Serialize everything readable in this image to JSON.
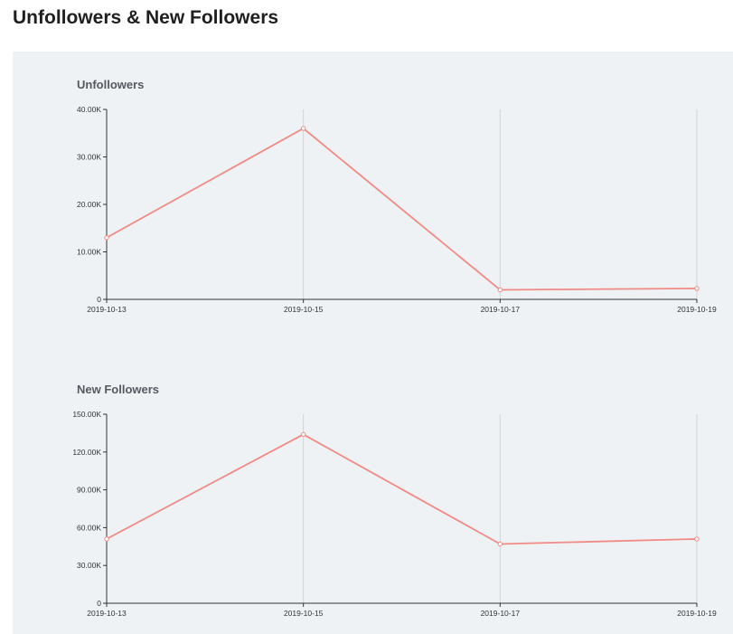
{
  "page": {
    "title": "Unfollowers & New Followers"
  },
  "colors": {
    "series": "#f08b84",
    "panel_bg": "#eff2f5"
  },
  "chart_data": [
    {
      "type": "line",
      "title": "Unfollowers",
      "x": [
        "2019-10-13",
        "2019-10-15",
        "2019-10-17",
        "2019-10-19"
      ],
      "series": [
        {
          "values": [
            13000,
            36000,
            2000,
            2300
          ]
        }
      ],
      "yticks": [
        0,
        10000,
        20000,
        30000,
        40000
      ],
      "ytick_labels": [
        "0",
        "10.00K",
        "20.00K",
        "30.00K",
        "40.00K"
      ],
      "ylim": [
        0,
        40000
      ],
      "grid": {
        "vertical": true,
        "horizontal": false
      }
    },
    {
      "type": "line",
      "title": "New Followers",
      "x": [
        "2019-10-13",
        "2019-10-15",
        "2019-10-17",
        "2019-10-19"
      ],
      "series": [
        {
          "values": [
            51000,
            134000,
            47000,
            51000
          ]
        }
      ],
      "yticks": [
        0,
        30000,
        60000,
        90000,
        120000,
        150000
      ],
      "ytick_labels": [
        "0",
        "30.00K",
        "60.00K",
        "90.00K",
        "120.00K",
        "150.00K"
      ],
      "ylim": [
        0,
        150000
      ],
      "grid": {
        "vertical": true,
        "horizontal": false
      }
    }
  ]
}
